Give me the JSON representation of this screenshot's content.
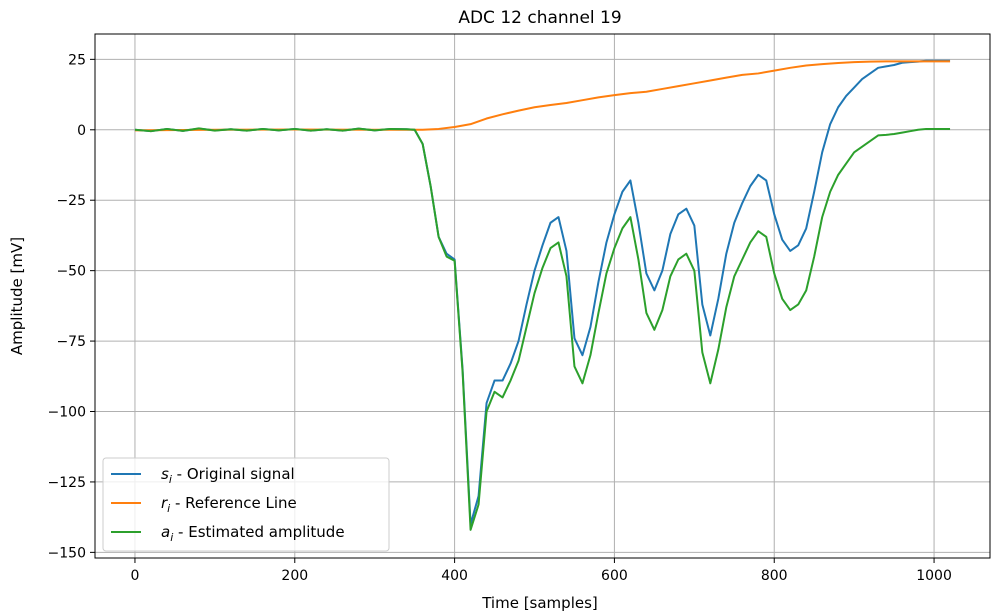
{
  "chart_data": {
    "type": "line",
    "title": "ADC 12 channel 19",
    "xlabel": "Time [samples]",
    "ylabel": "Amplitude [mV]",
    "xlim": [
      -50,
      1070
    ],
    "ylim": [
      -152,
      34
    ],
    "xticks": [
      0,
      200,
      400,
      600,
      800,
      1000
    ],
    "yticks": [
      25,
      0,
      -25,
      -50,
      -75,
      -100,
      -125,
      -150
    ],
    "xtick_labels": [
      "0",
      "200",
      "400",
      "600",
      "800",
      "1000"
    ],
    "ytick_labels": [
      "25",
      "0",
      "−25",
      "−50",
      "−75",
      "−100",
      "−125",
      "−150"
    ],
    "grid": true,
    "legend_position": "lower-left",
    "series": [
      {
        "name": "s_i - Original signal",
        "legend_var": "s",
        "legend_sub": "i",
        "legend_text": " - Original signal",
        "color": "#1f77b4",
        "points": [
          [
            0,
            0
          ],
          [
            20,
            -0.5
          ],
          [
            40,
            0.3
          ],
          [
            60,
            -0.4
          ],
          [
            80,
            0.4
          ],
          [
            100,
            -0.2
          ],
          [
            120,
            0.2
          ],
          [
            140,
            -0.3
          ],
          [
            160,
            0.3
          ],
          [
            180,
            -0.2
          ],
          [
            200,
            0.3
          ],
          [
            220,
            -0.3
          ],
          [
            240,
            0.2
          ],
          [
            260,
            -0.3
          ],
          [
            280,
            0.4
          ],
          [
            300,
            -0.2
          ],
          [
            320,
            0.3
          ],
          [
            340,
            0.2
          ],
          [
            350,
            0
          ],
          [
            360,
            -5
          ],
          [
            370,
            -20
          ],
          [
            380,
            -38
          ],
          [
            390,
            -44
          ],
          [
            400,
            -46
          ],
          [
            410,
            -85
          ],
          [
            420,
            -140
          ],
          [
            430,
            -130
          ],
          [
            440,
            -97
          ],
          [
            450,
            -89
          ],
          [
            460,
            -89
          ],
          [
            470,
            -83
          ],
          [
            480,
            -75
          ],
          [
            490,
            -62
          ],
          [
            500,
            -50
          ],
          [
            510,
            -41
          ],
          [
            520,
            -33
          ],
          [
            530,
            -31
          ],
          [
            540,
            -43
          ],
          [
            550,
            -74
          ],
          [
            560,
            -80
          ],
          [
            570,
            -70
          ],
          [
            580,
            -54
          ],
          [
            590,
            -40
          ],
          [
            600,
            -30
          ],
          [
            610,
            -22
          ],
          [
            620,
            -18
          ],
          [
            630,
            -33
          ],
          [
            640,
            -51
          ],
          [
            650,
            -57
          ],
          [
            660,
            -50
          ],
          [
            670,
            -37
          ],
          [
            680,
            -30
          ],
          [
            690,
            -28
          ],
          [
            700,
            -34
          ],
          [
            710,
            -62
          ],
          [
            720,
            -73
          ],
          [
            730,
            -60
          ],
          [
            740,
            -44
          ],
          [
            750,
            -33
          ],
          [
            760,
            -26
          ],
          [
            770,
            -20
          ],
          [
            780,
            -16
          ],
          [
            790,
            -18
          ],
          [
            800,
            -30
          ],
          [
            810,
            -39
          ],
          [
            820,
            -43
          ],
          [
            830,
            -41
          ],
          [
            840,
            -35
          ],
          [
            850,
            -22
          ],
          [
            860,
            -8
          ],
          [
            870,
            2
          ],
          [
            880,
            8
          ],
          [
            890,
            12
          ],
          [
            900,
            15
          ],
          [
            910,
            18
          ],
          [
            920,
            20
          ],
          [
            930,
            22
          ],
          [
            940,
            22.5
          ],
          [
            950,
            23
          ],
          [
            960,
            23.8
          ],
          [
            970,
            24
          ],
          [
            980,
            24.2
          ],
          [
            990,
            24.5
          ],
          [
            1000,
            24.5
          ],
          [
            1010,
            24.5
          ],
          [
            1020,
            24.5
          ]
        ]
      },
      {
        "name": "r_i - Reference Line",
        "legend_var": "r",
        "legend_sub": "i",
        "legend_text": " - Reference Line",
        "color": "#ff7f0e",
        "points": [
          [
            0,
            -0.2
          ],
          [
            100,
            0
          ],
          [
            200,
            0.1
          ],
          [
            300,
            0
          ],
          [
            360,
            0
          ],
          [
            380,
            0.3
          ],
          [
            400,
            1
          ],
          [
            420,
            2
          ],
          [
            440,
            4
          ],
          [
            460,
            5.5
          ],
          [
            480,
            6.8
          ],
          [
            500,
            8
          ],
          [
            520,
            8.8
          ],
          [
            540,
            9.5
          ],
          [
            560,
            10.5
          ],
          [
            580,
            11.5
          ],
          [
            600,
            12.3
          ],
          [
            620,
            13
          ],
          [
            640,
            13.5
          ],
          [
            660,
            14.5
          ],
          [
            680,
            15.5
          ],
          [
            700,
            16.5
          ],
          [
            720,
            17.5
          ],
          [
            740,
            18.5
          ],
          [
            760,
            19.5
          ],
          [
            780,
            20
          ],
          [
            800,
            21
          ],
          [
            820,
            22
          ],
          [
            840,
            22.8
          ],
          [
            860,
            23.3
          ],
          [
            880,
            23.7
          ],
          [
            900,
            24
          ],
          [
            920,
            24.2
          ],
          [
            940,
            24.3
          ],
          [
            960,
            24.3
          ],
          [
            980,
            24.3
          ],
          [
            1000,
            24.3
          ],
          [
            1020,
            24.3
          ]
        ]
      },
      {
        "name": "a_i - Estimated amplitude",
        "legend_var": "a",
        "legend_sub": "i",
        "legend_text": " - Estimated amplitude",
        "color": "#2ca02c",
        "points": [
          [
            0,
            0
          ],
          [
            20,
            -0.5
          ],
          [
            40,
            0.3
          ],
          [
            60,
            -0.4
          ],
          [
            80,
            0.5
          ],
          [
            100,
            -0.3
          ],
          [
            120,
            0.2
          ],
          [
            140,
            -0.3
          ],
          [
            160,
            0.3
          ],
          [
            180,
            -0.2
          ],
          [
            200,
            0.3
          ],
          [
            220,
            -0.3
          ],
          [
            240,
            0.2
          ],
          [
            260,
            -0.3
          ],
          [
            280,
            0.4
          ],
          [
            300,
            -0.2
          ],
          [
            320,
            0.3
          ],
          [
            340,
            0.2
          ],
          [
            350,
            0
          ],
          [
            360,
            -5
          ],
          [
            370,
            -20
          ],
          [
            380,
            -38
          ],
          [
            390,
            -45
          ],
          [
            400,
            -46.5
          ],
          [
            410,
            -86
          ],
          [
            420,
            -142
          ],
          [
            430,
            -133
          ],
          [
            440,
            -100
          ],
          [
            450,
            -93
          ],
          [
            460,
            -95
          ],
          [
            470,
            -89
          ],
          [
            480,
            -82
          ],
          [
            490,
            -70
          ],
          [
            500,
            -58
          ],
          [
            510,
            -49
          ],
          [
            520,
            -42
          ],
          [
            530,
            -40
          ],
          [
            540,
            -52
          ],
          [
            550,
            -84
          ],
          [
            560,
            -90
          ],
          [
            570,
            -80
          ],
          [
            580,
            -65
          ],
          [
            590,
            -51
          ],
          [
            600,
            -42
          ],
          [
            610,
            -35
          ],
          [
            620,
            -31
          ],
          [
            630,
            -46
          ],
          [
            640,
            -65
          ],
          [
            650,
            -71
          ],
          [
            660,
            -64
          ],
          [
            670,
            -52
          ],
          [
            680,
            -46
          ],
          [
            690,
            -44
          ],
          [
            700,
            -50
          ],
          [
            710,
            -79
          ],
          [
            720,
            -90
          ],
          [
            730,
            -78
          ],
          [
            740,
            -63
          ],
          [
            750,
            -52
          ],
          [
            760,
            -46
          ],
          [
            770,
            -40
          ],
          [
            780,
            -36
          ],
          [
            790,
            -38
          ],
          [
            800,
            -51
          ],
          [
            810,
            -60
          ],
          [
            820,
            -64
          ],
          [
            830,
            -62
          ],
          [
            840,
            -57
          ],
          [
            850,
            -45
          ],
          [
            860,
            -31
          ],
          [
            870,
            -22
          ],
          [
            880,
            -16
          ],
          [
            890,
            -12
          ],
          [
            900,
            -8
          ],
          [
            910,
            -6
          ],
          [
            920,
            -4
          ],
          [
            930,
            -2
          ],
          [
            940,
            -1.8
          ],
          [
            950,
            -1.5
          ],
          [
            960,
            -1
          ],
          [
            970,
            -0.5
          ],
          [
            980,
            0
          ],
          [
            990,
            0.3
          ],
          [
            1000,
            0.3
          ],
          [
            1010,
            0.3
          ],
          [
            1020,
            0.3
          ]
        ]
      }
    ]
  }
}
